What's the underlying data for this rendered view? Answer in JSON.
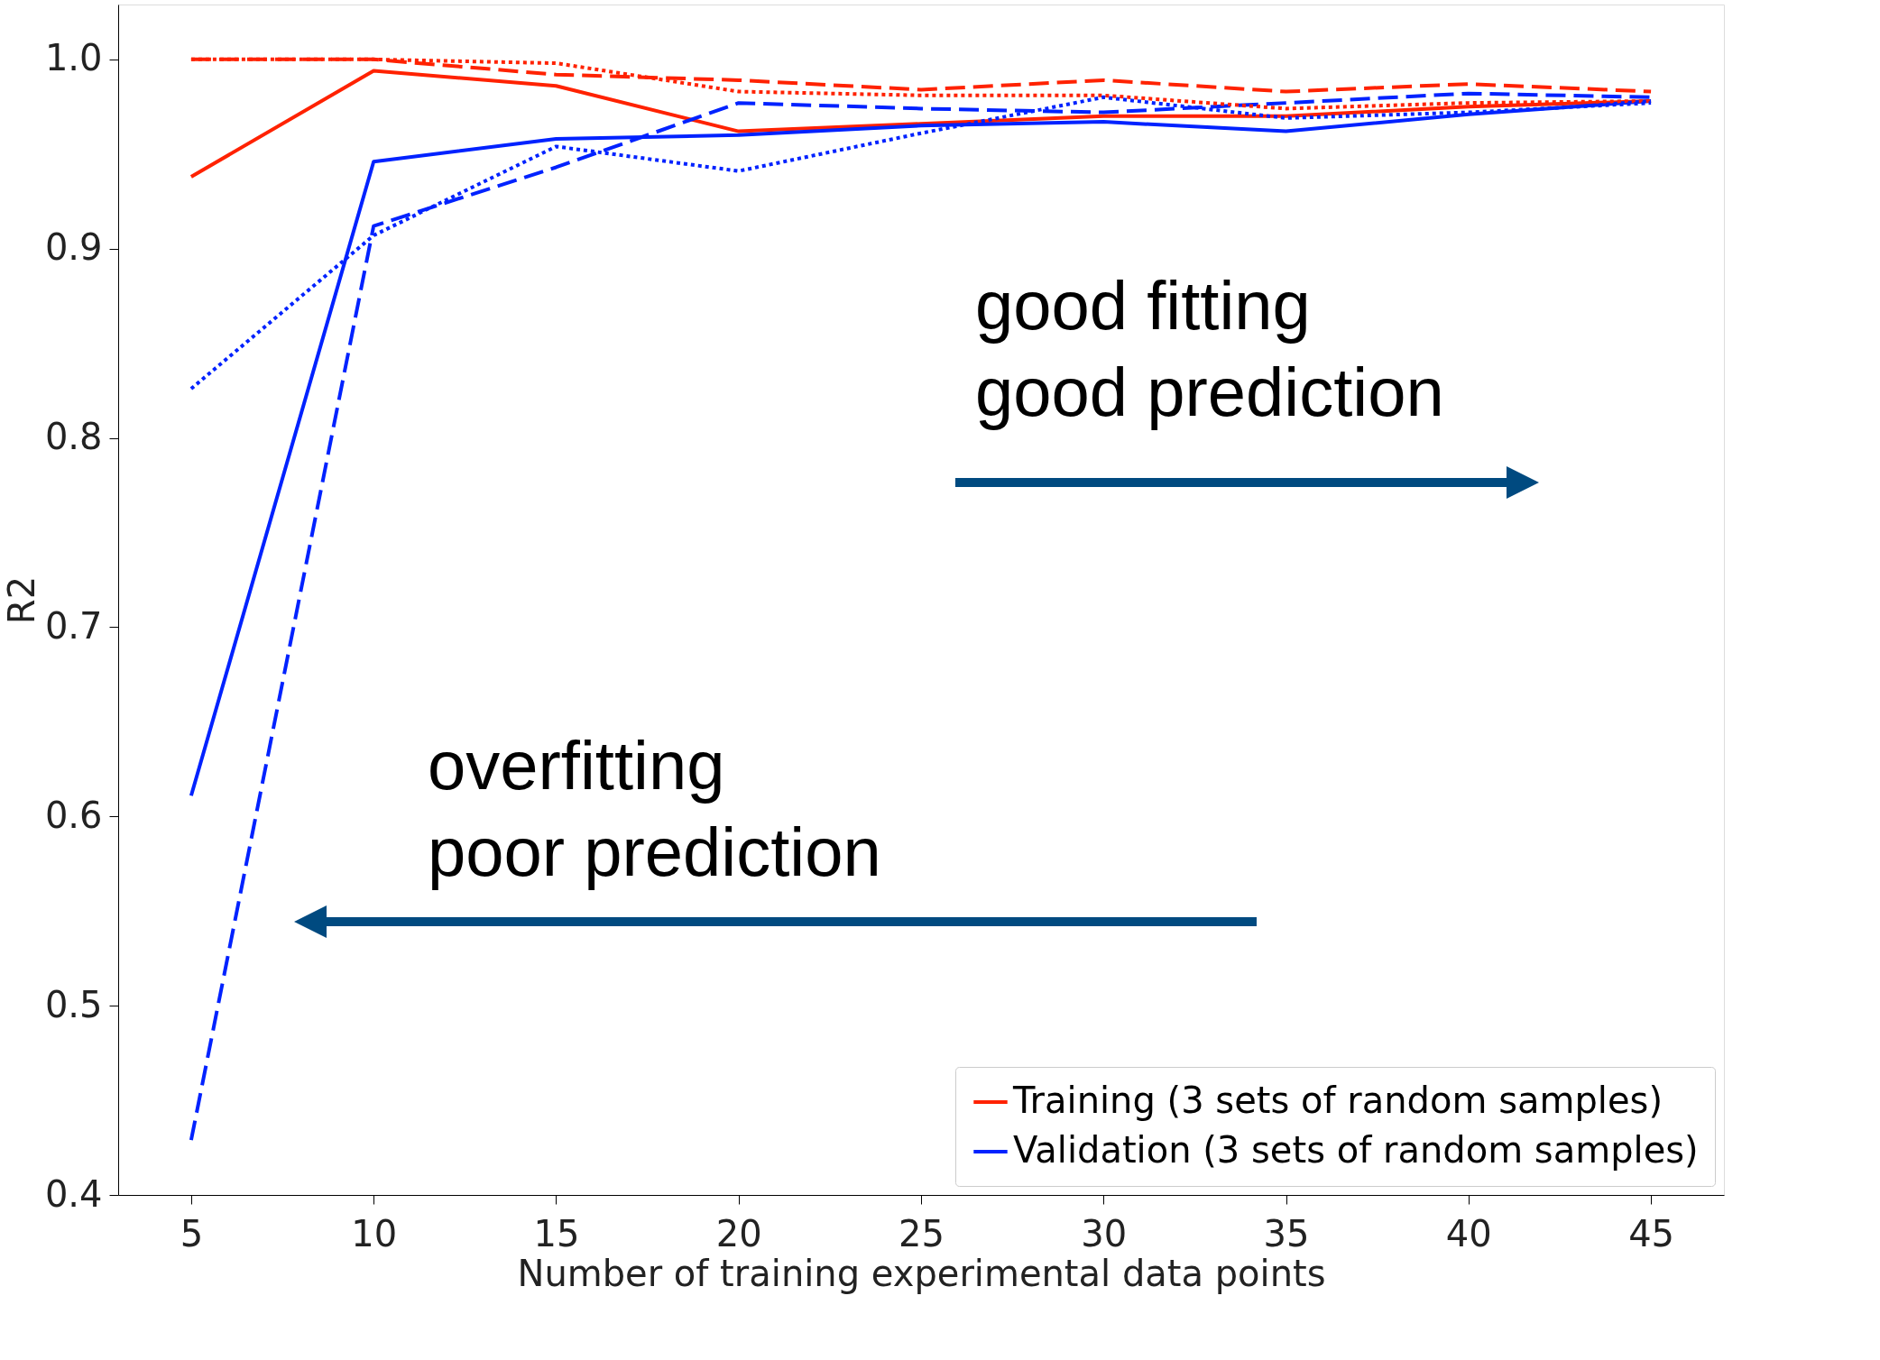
{
  "chart_data": {
    "type": "line",
    "xlabel": "Number of training experimental data points",
    "ylabel": "R2",
    "x": [
      5,
      10,
      15,
      20,
      25,
      30,
      35,
      40,
      45
    ],
    "series": [
      {
        "name": "Training (3 sets of random samples)",
        "color": "#ff2200",
        "line_style": "solid",
        "values": [
          0.938,
          0.994,
          0.986,
          0.962,
          0.966,
          0.97,
          0.97,
          0.975,
          0.978
        ]
      },
      {
        "color": "#ff2200",
        "line_style": "dashed",
        "values": [
          1.0,
          1.0,
          0.992,
          0.989,
          0.984,
          0.989,
          0.983,
          0.987,
          0.983
        ]
      },
      {
        "color": "#ff2200",
        "line_style": "dotted",
        "values": [
          1.0,
          1.0,
          0.998,
          0.983,
          0.981,
          0.981,
          0.974,
          0.977,
          0.978
        ]
      },
      {
        "name": "Validation (3 sets of random samples)",
        "color": "#0022ff",
        "line_style": "solid",
        "values": [
          0.611,
          0.946,
          0.958,
          0.96,
          0.965,
          0.967,
          0.962,
          0.971,
          0.978
        ]
      },
      {
        "color": "#0022ff",
        "line_style": "dashed",
        "values": [
          0.429,
          0.912,
          0.943,
          0.977,
          0.974,
          0.972,
          0.977,
          0.982,
          0.98
        ]
      },
      {
        "color": "#0022ff",
        "line_style": "dotted",
        "values": [
          0.826,
          0.907,
          0.954,
          0.941,
          0.961,
          0.98,
          0.969,
          0.972,
          0.977
        ]
      }
    ],
    "xlim": [
      3,
      47
    ],
    "ylim": [
      0.4,
      1.029
    ],
    "xticks": [
      5,
      10,
      15,
      20,
      25,
      30,
      35,
      40,
      45
    ],
    "yticks": [
      0.4,
      0.5,
      0.6,
      0.7,
      0.8,
      0.9,
      {
        "value": 1,
        "label": "1.0"
      }
    ],
    "grid": false,
    "legend": "bottom right",
    "marker": "none",
    "annotations": [
      "good fitting\ngood prediction",
      "overfitting\npoor prediction"
    ]
  }
}
